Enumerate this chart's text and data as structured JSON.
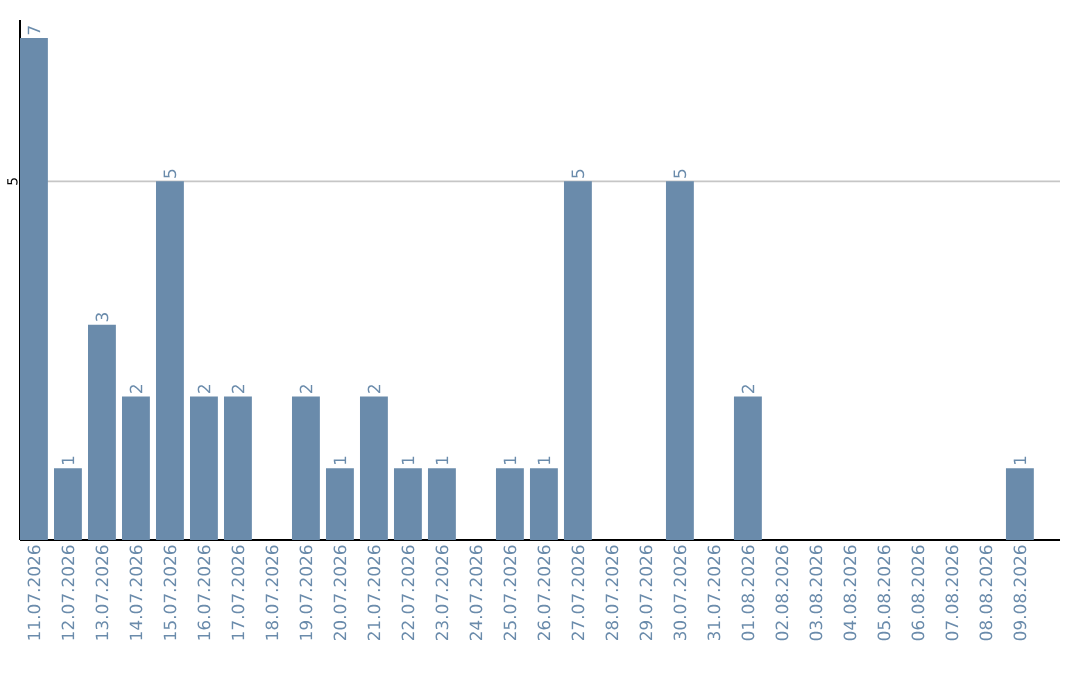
{
  "chart_data": {
    "type": "bar",
    "categories": [
      "11.07.2026",
      "12.07.2026",
      "13.07.2026",
      "14.07.2026",
      "15.07.2026",
      "16.07.2026",
      "17.07.2026",
      "18.07.2026",
      "19.07.2026",
      "20.07.2026",
      "21.07.2026",
      "22.07.2026",
      "23.07.2026",
      "24.07.2026",
      "25.07.2026",
      "26.07.2026",
      "27.07.2026",
      "28.07.2026",
      "29.07.2026",
      "30.07.2026",
      "31.07.2026",
      "01.08.2026",
      "02.08.2026",
      "03.08.2026",
      "04.08.2026",
      "05.08.2026",
      "06.08.2026",
      "07.08.2026",
      "08.08.2026",
      "09.08.2026"
    ],
    "values": [
      7,
      1,
      3,
      2,
      5,
      2,
      2,
      0,
      2,
      1,
      2,
      1,
      1,
      0,
      1,
      1,
      5,
      0,
      0,
      5,
      0,
      2,
      0,
      0,
      0,
      0,
      0,
      0,
      0,
      1
    ],
    "value_labels": [
      "7",
      "1",
      "3",
      "2",
      "5",
      "2",
      "2",
      null,
      "2",
      "1",
      "2",
      "1",
      "1",
      null,
      "1",
      "1",
      "5",
      null,
      null,
      "5",
      null,
      "2",
      null,
      null,
      null,
      null,
      null,
      null,
      null,
      "1"
    ],
    "color": "#6a8bab",
    "ylim": [
      0,
      7.25
    ],
    "yticks": [
      5
    ],
    "grid": "y"
  }
}
